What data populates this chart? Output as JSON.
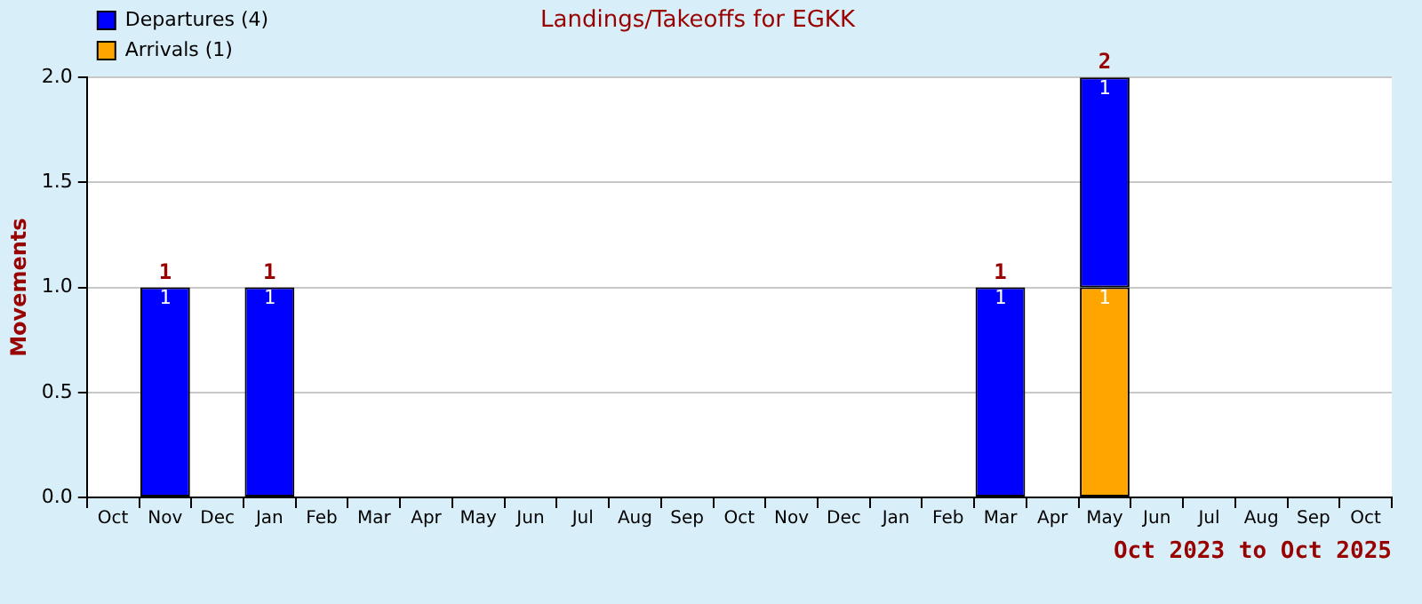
{
  "chart_data": {
    "type": "bar",
    "title": "Landings/Takeoffs for EGKK",
    "ylabel": "Movements",
    "categories": [
      "Oct",
      "Nov",
      "Dec",
      "Jan",
      "Feb",
      "Mar",
      "Apr",
      "May",
      "Jun",
      "Jul",
      "Aug",
      "Sep",
      "Oct",
      "Nov",
      "Dec",
      "Jan",
      "Feb",
      "Mar",
      "Apr",
      "May",
      "Jun",
      "Jul",
      "Aug",
      "Sep",
      "Oct"
    ],
    "stacked": true,
    "series": [
      {
        "name": "Arrivals (1)",
        "color": "#ffa500",
        "values": [
          0,
          0,
          0,
          0,
          0,
          0,
          0,
          0,
          0,
          0,
          0,
          0,
          0,
          0,
          0,
          0,
          0,
          0,
          0,
          1,
          0,
          0,
          0,
          0,
          0
        ],
        "value_labels": [
          null,
          null,
          null,
          null,
          null,
          null,
          null,
          null,
          null,
          null,
          null,
          null,
          null,
          null,
          null,
          null,
          null,
          null,
          null,
          "1",
          null,
          null,
          null,
          null,
          null
        ]
      },
      {
        "name": "Departures (4)",
        "color": "#0000ff",
        "values": [
          0,
          1,
          0,
          1,
          0,
          0,
          0,
          0,
          0,
          0,
          0,
          0,
          0,
          0,
          0,
          0,
          0,
          1,
          0,
          1,
          0,
          0,
          0,
          0,
          0
        ],
        "value_labels": [
          null,
          "1",
          null,
          "1",
          null,
          null,
          null,
          null,
          null,
          null,
          null,
          null,
          null,
          null,
          null,
          null,
          null,
          "1",
          null,
          "1",
          null,
          null,
          null,
          null,
          null
        ]
      }
    ],
    "totals": [
      null,
      "1",
      null,
      "1",
      null,
      null,
      null,
      null,
      null,
      null,
      null,
      null,
      null,
      null,
      null,
      null,
      null,
      "1",
      null,
      "2",
      null,
      null,
      null,
      null,
      null
    ],
    "ylim": [
      0,
      2
    ],
    "yticks": [
      {
        "value": 0,
        "label": "0.0"
      },
      0.5,
      {
        "value": 1,
        "label": "1.0"
      },
      1.5,
      {
        "value": 2,
        "label": "2.0"
      }
    ],
    "grid": "y",
    "legend": "top left",
    "annotations": [
      "Oct 2023 to Oct 2025"
    ]
  }
}
